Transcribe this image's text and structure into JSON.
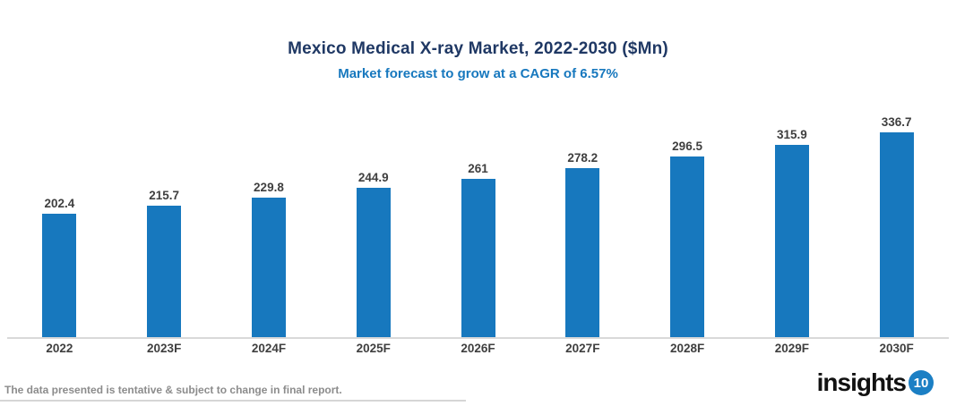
{
  "chart_data": {
    "type": "bar",
    "title": "Mexico Medical X-ray Market, 2022-2030 ($Mn)",
    "subtitle": "Market forecast to grow at a CAGR of 6.57%",
    "categories": [
      "2022",
      "2023F",
      "2024F",
      "2025F",
      "2026F",
      "2027F",
      "2028F",
      "2029F",
      "2030F"
    ],
    "values": [
      202.4,
      215.7,
      229.8,
      244.9,
      261,
      278.2,
      296.5,
      315.9,
      336.7
    ],
    "xlabel": "",
    "ylabel": "",
    "ylim": [
      0,
      360
    ],
    "grid": false,
    "legend": false,
    "value_labels_shown": true,
    "bar_color": "#1778BE"
  },
  "footer": {
    "disclaimer": "The data presented is tentative & subject to change in final report."
  },
  "logo": {
    "text": "insights",
    "badge": "10"
  },
  "colors": {
    "title_text": "#1F3864",
    "subtitle_text": "#1778BE",
    "bar": "#1778BE",
    "axis_line": "#D9D9D9",
    "data_label_text": "#3F3F3F",
    "footer_text": "#8C8C8C",
    "logo_text": "#111111",
    "logo_badge_bg": "#1B7FC4",
    "logo_badge_text": "#FFFFFF"
  }
}
